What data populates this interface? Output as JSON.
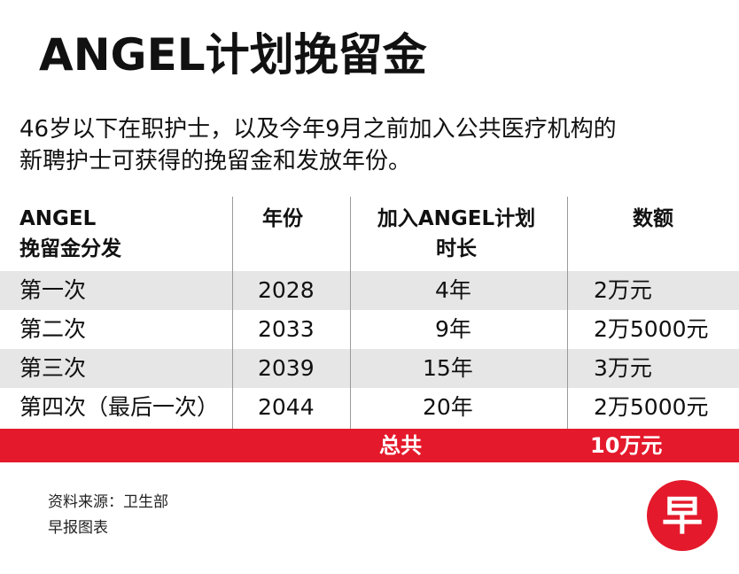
{
  "title": "ANGEL计划挽留金",
  "subtitle": {
    "line1": "46岁以下在职护士，以及今年9月之前加入公共医疗机构的",
    "line2": "新聘护士可获得的挽留金和发放年份。"
  },
  "table": {
    "headers": [
      {
        "line1": "ANGEL",
        "line2": "挽留金分发"
      },
      {
        "line1": "年份",
        "line2": ""
      },
      {
        "line1": "加入ANGEL计划",
        "line2": "时长"
      },
      {
        "line1": "数额",
        "line2": ""
      }
    ],
    "rows": [
      {
        "payout": "第一次",
        "year": "2028",
        "duration": "4年",
        "amount": "2万元"
      },
      {
        "payout": "第二次",
        "year": "2033",
        "duration": "9年",
        "amount": "2万5000元"
      },
      {
        "payout": "第三次",
        "year": "2039",
        "duration": "15年",
        "amount": "3万元"
      },
      {
        "payout": "第四次（最后一次）",
        "year": "2044",
        "duration": "20年",
        "amount": "2万5000元"
      }
    ],
    "total": {
      "label": "总共",
      "amount": "10万元"
    }
  },
  "footer": {
    "source": "资料来源：卫生部",
    "credit": "早报图表"
  },
  "logo": {
    "glyph": "早"
  },
  "colors": {
    "accent_red": "#e4192b",
    "row_shade": "#e6e6e6",
    "text": "#111111"
  }
}
